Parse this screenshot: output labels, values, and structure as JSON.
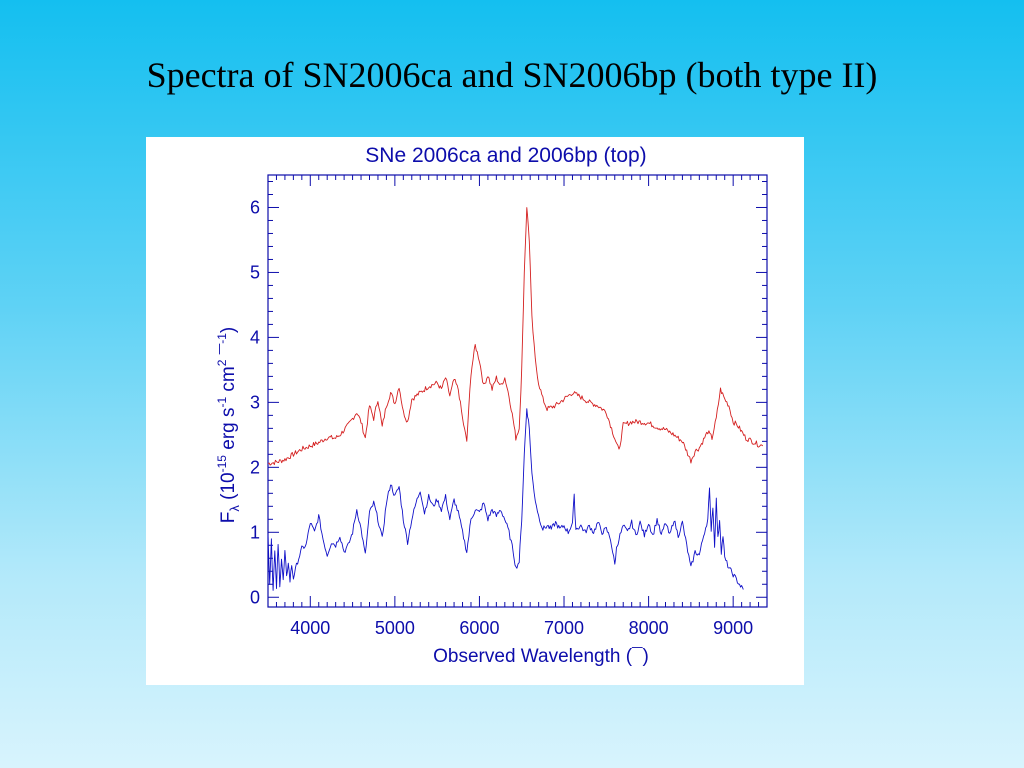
{
  "slide": {
    "title": "Spectra of SN2006ca and SN2006bp (both type II)"
  },
  "chart_data": {
    "type": "line",
    "title": "SNe 2006ca and 2006bp (top)",
    "xlabel": "Observed Wavelength (¯)",
    "ylabel_main": "F",
    "ylabel_sub": "λ",
    "ylabel_rest": " (10",
    "ylabel_exp": "-15",
    "ylabel_units": " erg s",
    "ylabel_exp2": "-1",
    "ylabel_units2": " cm",
    "ylabel_exp3": "2",
    "ylabel_units3": " ¯",
    "ylabel_exp4": "-1",
    "ylabel_close": ")",
    "xlim": [
      3500,
      9400
    ],
    "ylim": [
      -0.15,
      6.5
    ],
    "x_ticks": [
      4000,
      5000,
      6000,
      7000,
      8000,
      9000
    ],
    "y_ticks": [
      0,
      1,
      2,
      3,
      4,
      5,
      6
    ],
    "colors": {
      "axis": "#0d0dab",
      "top": "#d42020",
      "bottom": "#1010c8",
      "text": "#0d0dab"
    },
    "series": [
      {
        "key": "top",
        "points": [
          [
            3500,
            2.06
          ],
          [
            3600,
            2.08
          ],
          [
            3700,
            2.12
          ],
          [
            3800,
            2.2
          ],
          [
            3900,
            2.28
          ],
          [
            4000,
            2.33
          ],
          [
            4100,
            2.38
          ],
          [
            4200,
            2.46
          ],
          [
            4300,
            2.45
          ],
          [
            4350,
            2.5
          ],
          [
            4450,
            2.65
          ],
          [
            4550,
            2.85
          ],
          [
            4600,
            2.7
          ],
          [
            4650,
            2.45
          ],
          [
            4700,
            2.95
          ],
          [
            4750,
            2.75
          ],
          [
            4800,
            3.05
          ],
          [
            4850,
            2.62
          ],
          [
            4900,
            2.95
          ],
          [
            4950,
            3.15
          ],
          [
            5000,
            2.98
          ],
          [
            5050,
            3.25
          ],
          [
            5100,
            2.85
          ],
          [
            5150,
            2.7
          ],
          [
            5200,
            3.05
          ],
          [
            5300,
            3.15
          ],
          [
            5400,
            3.25
          ],
          [
            5500,
            3.3
          ],
          [
            5550,
            3.2
          ],
          [
            5600,
            3.38
          ],
          [
            5650,
            3.1
          ],
          [
            5700,
            3.35
          ],
          [
            5750,
            3.2
          ],
          [
            5800,
            2.75
          ],
          [
            5850,
            2.4
          ],
          [
            5900,
            3.45
          ],
          [
            5950,
            3.88
          ],
          [
            6000,
            3.65
          ],
          [
            6050,
            3.25
          ],
          [
            6100,
            3.42
          ],
          [
            6150,
            3.2
          ],
          [
            6200,
            3.38
          ],
          [
            6250,
            3.25
          ],
          [
            6300,
            3.38
          ],
          [
            6350,
            3.1
          ],
          [
            6400,
            2.72
          ],
          [
            6430,
            2.45
          ],
          [
            6470,
            2.6
          ],
          [
            6500,
            3.5
          ],
          [
            6530,
            5.0
          ],
          [
            6560,
            6.02
          ],
          [
            6590,
            5.5
          ],
          [
            6620,
            4.3
          ],
          [
            6660,
            3.65
          ],
          [
            6700,
            3.3
          ],
          [
            6750,
            3.05
          ],
          [
            6800,
            2.9
          ],
          [
            6900,
            2.95
          ],
          [
            7000,
            3.05
          ],
          [
            7100,
            3.15
          ],
          [
            7200,
            3.08
          ],
          [
            7300,
            3.0
          ],
          [
            7400,
            2.95
          ],
          [
            7500,
            2.85
          ],
          [
            7600,
            2.45
          ],
          [
            7650,
            2.25
          ],
          [
            7700,
            2.65
          ],
          [
            7800,
            2.7
          ],
          [
            7900,
            2.7
          ],
          [
            8000,
            2.68
          ],
          [
            8100,
            2.62
          ],
          [
            8200,
            2.58
          ],
          [
            8300,
            2.5
          ],
          [
            8400,
            2.4
          ],
          [
            8450,
            2.25
          ],
          [
            8500,
            2.1
          ],
          [
            8550,
            2.25
          ],
          [
            8600,
            2.3
          ],
          [
            8700,
            2.55
          ],
          [
            8750,
            2.45
          ],
          [
            8800,
            2.75
          ],
          [
            8850,
            3.2
          ],
          [
            8900,
            3.05
          ],
          [
            8950,
            2.95
          ],
          [
            9000,
            2.7
          ],
          [
            9050,
            2.65
          ],
          [
            9100,
            2.55
          ],
          [
            9150,
            2.45
          ],
          [
            9200,
            2.42
          ],
          [
            9300,
            2.35
          ],
          [
            9350,
            2.33
          ]
        ]
      },
      {
        "key": "bottom",
        "points": [
          [
            3500,
            1.0
          ],
          [
            3520,
            0.2
          ],
          [
            3540,
            0.9
          ],
          [
            3560,
            0.1
          ],
          [
            3580,
            0.7
          ],
          [
            3600,
            0.15
          ],
          [
            3620,
            0.8
          ],
          [
            3640,
            0.2
          ],
          [
            3660,
            0.6
          ],
          [
            3680,
            0.25
          ],
          [
            3700,
            0.7
          ],
          [
            3720,
            0.3
          ],
          [
            3740,
            0.55
          ],
          [
            3760,
            0.25
          ],
          [
            3780,
            0.5
          ],
          [
            3800,
            0.3
          ],
          [
            3850,
            0.55
          ],
          [
            3900,
            0.75
          ],
          [
            3950,
            0.8
          ],
          [
            4000,
            1.15
          ],
          [
            4050,
            1.0
          ],
          [
            4100,
            1.25
          ],
          [
            4150,
            0.9
          ],
          [
            4200,
            0.65
          ],
          [
            4250,
            0.85
          ],
          [
            4300,
            0.8
          ],
          [
            4350,
            0.95
          ],
          [
            4400,
            0.7
          ],
          [
            4450,
            0.8
          ],
          [
            4500,
            1.0
          ],
          [
            4550,
            1.35
          ],
          [
            4600,
            1.05
          ],
          [
            4650,
            0.65
          ],
          [
            4700,
            1.3
          ],
          [
            4750,
            1.45
          ],
          [
            4800,
            1.2
          ],
          [
            4850,
            0.9
          ],
          [
            4900,
            1.45
          ],
          [
            4950,
            1.75
          ],
          [
            5000,
            1.55
          ],
          [
            5050,
            1.7
          ],
          [
            5100,
            1.2
          ],
          [
            5150,
            0.85
          ],
          [
            5200,
            1.2
          ],
          [
            5250,
            1.45
          ],
          [
            5300,
            1.65
          ],
          [
            5350,
            1.3
          ],
          [
            5400,
            1.55
          ],
          [
            5450,
            1.4
          ],
          [
            5500,
            1.5
          ],
          [
            5550,
            1.35
          ],
          [
            5600,
            1.55
          ],
          [
            5650,
            1.2
          ],
          [
            5700,
            1.5
          ],
          [
            5750,
            1.3
          ],
          [
            5800,
            1.0
          ],
          [
            5850,
            0.7
          ],
          [
            5900,
            1.2
          ],
          [
            5950,
            1.35
          ],
          [
            6000,
            1.3
          ],
          [
            6050,
            1.45
          ],
          [
            6100,
            1.2
          ],
          [
            6150,
            1.35
          ],
          [
            6200,
            1.25
          ],
          [
            6250,
            1.35
          ],
          [
            6300,
            1.2
          ],
          [
            6350,
            1.0
          ],
          [
            6400,
            0.7
          ],
          [
            6430,
            0.45
          ],
          [
            6470,
            0.55
          ],
          [
            6500,
            1.2
          ],
          [
            6530,
            2.2
          ],
          [
            6560,
            2.92
          ],
          [
            6590,
            2.6
          ],
          [
            6620,
            1.9
          ],
          [
            6660,
            1.5
          ],
          [
            6700,
            1.25
          ],
          [
            6750,
            1.05
          ],
          [
            6800,
            1.1
          ],
          [
            6850,
            1.05
          ],
          [
            6900,
            1.15
          ],
          [
            6950,
            1.05
          ],
          [
            7000,
            1.1
          ],
          [
            7050,
            1.0
          ],
          [
            7100,
            1.15
          ],
          [
            7120,
            1.55
          ],
          [
            7140,
            1.05
          ],
          [
            7200,
            1.1
          ],
          [
            7250,
            1.0
          ],
          [
            7300,
            1.1
          ],
          [
            7350,
            1.0
          ],
          [
            7400,
            1.15
          ],
          [
            7450,
            1.0
          ],
          [
            7500,
            1.05
          ],
          [
            7550,
            0.9
          ],
          [
            7600,
            0.5
          ],
          [
            7620,
            0.75
          ],
          [
            7650,
            0.9
          ],
          [
            7700,
            1.1
          ],
          [
            7750,
            1.0
          ],
          [
            7800,
            1.15
          ],
          [
            7850,
            0.95
          ],
          [
            7900,
            1.15
          ],
          [
            7950,
            0.95
          ],
          [
            8000,
            1.15
          ],
          [
            8050,
            0.95
          ],
          [
            8100,
            1.2
          ],
          [
            8150,
            0.95
          ],
          [
            8200,
            1.15
          ],
          [
            8250,
            0.95
          ],
          [
            8300,
            1.2
          ],
          [
            8350,
            0.95
          ],
          [
            8400,
            1.15
          ],
          [
            8450,
            0.8
          ],
          [
            8500,
            0.45
          ],
          [
            8550,
            0.7
          ],
          [
            8600,
            0.65
          ],
          [
            8650,
            0.95
          ],
          [
            8700,
            1.2
          ],
          [
            8720,
            1.65
          ],
          [
            8740,
            1.05
          ],
          [
            8760,
            1.4
          ],
          [
            8780,
            0.8
          ],
          [
            8800,
            1.5
          ],
          [
            8820,
            0.9
          ],
          [
            8840,
            1.2
          ],
          [
            8860,
            0.7
          ],
          [
            8880,
            0.95
          ],
          [
            8900,
            0.6
          ],
          [
            8950,
            0.45
          ],
          [
            9000,
            0.35
          ],
          [
            9050,
            0.25
          ],
          [
            9100,
            0.15
          ],
          [
            9120,
            0.12
          ]
        ]
      }
    ]
  }
}
